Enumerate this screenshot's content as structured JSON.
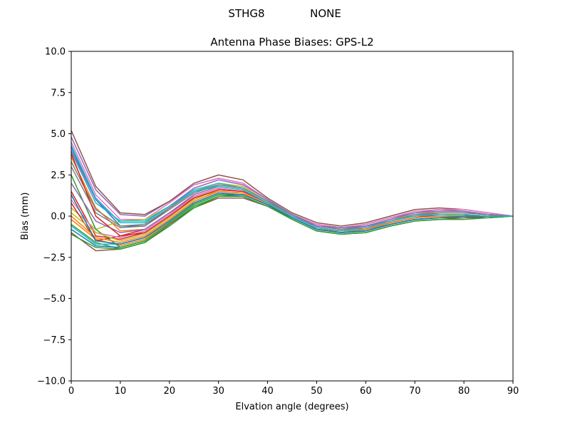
{
  "figure": {
    "suptitle_left": "STHG8",
    "suptitle_right": "NONE"
  },
  "chart_data": {
    "type": "line",
    "title": "Antenna Phase Biases: GPS-L2",
    "xlabel": "Elvation angle (degrees)",
    "ylabel": "Bias (mm)",
    "xlim": [
      0,
      90
    ],
    "ylim": [
      -10,
      10
    ],
    "x_ticks": [
      "0",
      "10",
      "20",
      "30",
      "40",
      "50",
      "60",
      "70",
      "80",
      "90"
    ],
    "y_ticks": [
      "−10.0",
      "−7.5",
      "−5.0",
      "−2.5",
      "0.0",
      "2.5",
      "5.0",
      "7.5",
      "10.0"
    ],
    "grid": false,
    "legend": "none",
    "x": [
      0,
      5,
      10,
      15,
      20,
      25,
      30,
      35,
      40,
      45,
      50,
      55,
      60,
      65,
      70,
      75,
      80,
      85,
      90
    ],
    "series": [
      {
        "color": "#1f77b4",
        "values": [
          4.2,
          1.0,
          -0.6,
          -0.6,
          0.5,
          1.5,
          1.8,
          1.6,
          0.8,
          0.0,
          -0.7,
          -0.9,
          -0.8,
          -0.4,
          -0.1,
          0.1,
          0.1,
          0.0,
          0.0
        ]
      },
      {
        "color": "#ff7f0e",
        "values": [
          3.6,
          0.5,
          -0.9,
          -0.8,
          0.2,
          1.1,
          1.5,
          1.4,
          0.7,
          0.0,
          -0.7,
          -0.9,
          -0.7,
          -0.4,
          -0.1,
          0.1,
          0.1,
          0.0,
          0.0
        ]
      },
      {
        "color": "#2ca02c",
        "values": [
          -0.5,
          -1.6,
          -2.0,
          -1.6,
          -0.5,
          0.6,
          1.2,
          1.2,
          0.6,
          -0.1,
          -0.8,
          -1.0,
          -0.9,
          -0.5,
          -0.2,
          -0.1,
          -0.1,
          -0.1,
          0.0
        ]
      },
      {
        "color": "#d62728",
        "values": [
          1.5,
          -1.2,
          -1.4,
          -1.0,
          0.0,
          1.1,
          1.6,
          1.5,
          0.8,
          0.0,
          -0.7,
          -0.9,
          -0.8,
          -0.4,
          -0.1,
          0.1,
          0.1,
          0.0,
          0.0
        ]
      },
      {
        "color": "#9467bd",
        "values": [
          4.8,
          1.6,
          0.1,
          0.0,
          0.9,
          1.9,
          2.3,
          2.0,
          1.0,
          0.1,
          -0.5,
          -0.7,
          -0.5,
          -0.1,
          0.2,
          0.4,
          0.3,
          0.1,
          0.0
        ]
      },
      {
        "color": "#8c564b",
        "values": [
          5.2,
          1.8,
          0.2,
          0.1,
          0.9,
          2.0,
          2.5,
          2.2,
          1.1,
          0.2,
          -0.4,
          -0.6,
          -0.4,
          0.0,
          0.4,
          0.5,
          0.4,
          0.2,
          0.0
        ]
      },
      {
        "color": "#e377c2",
        "values": [
          4.5,
          1.3,
          -0.2,
          -0.2,
          0.8,
          1.9,
          2.3,
          2.0,
          1.0,
          0.1,
          -0.5,
          -0.7,
          -0.5,
          -0.1,
          0.3,
          0.4,
          0.4,
          0.2,
          0.0
        ]
      },
      {
        "color": "#7f7f7f",
        "values": [
          3.0,
          0.2,
          -0.7,
          -0.6,
          0.4,
          1.4,
          1.9,
          1.7,
          0.9,
          0.1,
          -0.6,
          -0.8,
          -0.7,
          -0.3,
          0.0,
          0.2,
          0.2,
          0.1,
          0.0
        ]
      },
      {
        "color": "#bcbd22",
        "values": [
          0.5,
          -0.8,
          -0.3,
          -0.2,
          0.6,
          1.5,
          2.0,
          1.8,
          0.9,
          0.1,
          -0.6,
          -0.8,
          -0.6,
          -0.2,
          0.1,
          0.3,
          0.3,
          0.1,
          0.0
        ]
      },
      {
        "color": "#17becf",
        "values": [
          3.9,
          0.8,
          -0.3,
          -0.3,
          0.6,
          1.6,
          2.0,
          1.7,
          0.9,
          0.0,
          -0.6,
          -0.8,
          -0.6,
          -0.3,
          0.1,
          0.2,
          0.2,
          0.1,
          0.0
        ]
      },
      {
        "color": "#1f77b4",
        "values": [
          -0.8,
          -1.8,
          -1.9,
          -1.5,
          -0.4,
          0.7,
          1.3,
          1.3,
          0.7,
          -0.1,
          -0.8,
          -1.0,
          -0.9,
          -0.5,
          -0.2,
          -0.1,
          -0.1,
          0.0,
          0.0
        ]
      },
      {
        "color": "#ff7f0e",
        "values": [
          -0.2,
          -1.4,
          -1.8,
          -1.4,
          -0.3,
          0.8,
          1.4,
          1.3,
          0.7,
          0.0,
          -0.7,
          -1.0,
          -0.8,
          -0.4,
          -0.1,
          0.0,
          0.0,
          0.0,
          0.0
        ]
      },
      {
        "color": "#2ca02c",
        "values": [
          2.5,
          -0.8,
          -1.9,
          -1.5,
          -0.4,
          0.7,
          1.3,
          1.2,
          0.6,
          -0.1,
          -0.8,
          -1.0,
          -0.9,
          -0.5,
          -0.2,
          -0.1,
          -0.1,
          0.0,
          0.0
        ]
      },
      {
        "color": "#d62728",
        "values": [
          0.8,
          -1.5,
          -1.2,
          -0.8,
          0.2,
          1.2,
          1.7,
          1.5,
          0.8,
          0.0,
          -0.7,
          -0.9,
          -0.7,
          -0.3,
          0.0,
          0.1,
          0.1,
          0.0,
          0.0
        ]
      },
      {
        "color": "#9467bd",
        "values": [
          2.0,
          -0.3,
          -1.0,
          -0.8,
          0.2,
          1.3,
          1.8,
          1.6,
          0.8,
          0.0,
          -0.6,
          -0.8,
          -0.7,
          -0.3,
          0.0,
          0.2,
          0.2,
          0.1,
          0.0
        ]
      },
      {
        "color": "#8c564b",
        "values": [
          -1.0,
          -2.1,
          -2.0,
          -1.6,
          -0.5,
          0.5,
          1.1,
          1.1,
          0.6,
          -0.2,
          -0.9,
          -1.1,
          -1.0,
          -0.6,
          -0.3,
          -0.2,
          -0.1,
          -0.1,
          0.0
        ]
      },
      {
        "color": "#e377c2",
        "values": [
          1.0,
          -1.0,
          -1.3,
          -0.9,
          0.1,
          1.2,
          1.7,
          1.5,
          0.8,
          0.0,
          -0.7,
          -0.9,
          -0.7,
          -0.4,
          -0.1,
          0.1,
          0.1,
          0.0,
          0.0
        ]
      },
      {
        "color": "#7f7f7f",
        "values": [
          3.3,
          0.4,
          -0.6,
          -0.5,
          0.5,
          1.5,
          1.9,
          1.7,
          0.9,
          0.1,
          -0.6,
          -0.8,
          -0.6,
          -0.3,
          0.1,
          0.2,
          0.2,
          0.1,
          0.0
        ]
      },
      {
        "color": "#bcbd22",
        "values": [
          0.2,
          -1.0,
          -1.5,
          -1.1,
          -0.1,
          1.0,
          1.6,
          1.5,
          0.8,
          0.0,
          -0.7,
          -0.9,
          -0.8,
          -0.4,
          -0.1,
          0.0,
          0.1,
          0.0,
          0.0
        ]
      },
      {
        "color": "#17becf",
        "values": [
          -0.6,
          -1.7,
          -1.7,
          -1.3,
          -0.3,
          0.8,
          1.4,
          1.3,
          0.7,
          -0.1,
          -0.8,
          -1.0,
          -0.8,
          -0.5,
          -0.2,
          -0.1,
          0.0,
          0.0,
          0.0
        ]
      },
      {
        "color": "#2ca02c",
        "values": [
          -1.1,
          -1.9,
          -2.0,
          -1.6,
          -0.6,
          0.5,
          1.2,
          1.2,
          0.6,
          -0.2,
          -0.9,
          -1.1,
          -1.0,
          -0.6,
          -0.3,
          -0.2,
          -0.2,
          -0.1,
          0.0
        ]
      },
      {
        "color": "#d62728",
        "values": [
          3.8,
          0.0,
          -1.2,
          -1.0,
          0.0,
          1.1,
          1.6,
          1.5,
          0.8,
          0.0,
          -0.7,
          -0.9,
          -0.8,
          -0.4,
          -0.1,
          0.1,
          0.1,
          0.0,
          0.0
        ]
      },
      {
        "color": "#9467bd",
        "values": [
          4.0,
          1.0,
          -0.4,
          -0.4,
          0.6,
          1.7,
          2.2,
          1.9,
          1.0,
          0.1,
          -0.6,
          -0.7,
          -0.6,
          -0.2,
          0.2,
          0.3,
          0.3,
          0.1,
          0.0
        ]
      },
      {
        "color": "#ff7f0e",
        "values": [
          0.0,
          -1.3,
          -1.6,
          -1.2,
          -0.2,
          0.9,
          1.5,
          1.4,
          0.7,
          0.0,
          -0.7,
          -0.9,
          -0.8,
          -0.4,
          -0.1,
          0.0,
          0.0,
          0.0,
          0.0
        ]
      },
      {
        "color": "#1f77b4",
        "values": [
          1.3,
          -1.5,
          -1.7,
          -1.3,
          -0.3,
          0.8,
          1.4,
          1.3,
          0.7,
          -0.1,
          -0.8,
          -1.0,
          -0.9,
          -0.5,
          -0.2,
          -0.1,
          0.0,
          0.0,
          0.0
        ]
      },
      {
        "color": "#17becf",
        "values": [
          4.3,
          1.1,
          -0.4,
          -0.4,
          0.6,
          1.5,
          1.8,
          1.6,
          0.8,
          0.0,
          -0.7,
          -0.9,
          -0.7,
          -0.3,
          0.0,
          0.1,
          0.1,
          0.0,
          0.0
        ]
      }
    ]
  }
}
